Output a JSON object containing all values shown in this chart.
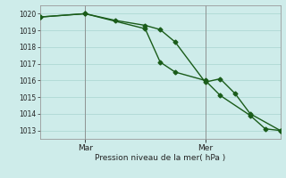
{
  "xlabel": "Pression niveau de la mer( hPa )",
  "background_color": "#ceecea",
  "grid_color": "#aed8d4",
  "line_color": "#1a5c1a",
  "ylim": [
    1012.5,
    1020.5
  ],
  "xlim": [
    0,
    48
  ],
  "yticks": [
    1013,
    1014,
    1015,
    1016,
    1017,
    1018,
    1019,
    1020
  ],
  "day_markers": [
    {
      "x": 9,
      "label": "Mar"
    },
    {
      "x": 33,
      "label": "Mer"
    }
  ],
  "series1": {
    "x": [
      0,
      9,
      15,
      21,
      24,
      27,
      33,
      36,
      39,
      42,
      48
    ],
    "y": [
      1019.8,
      1020.0,
      1019.6,
      1019.3,
      1019.05,
      1018.3,
      1015.9,
      1016.1,
      1015.2,
      1014.0,
      1013.0
    ]
  },
  "series2": {
    "x": [
      0,
      9,
      21,
      24,
      27,
      33,
      36,
      42,
      45,
      48
    ],
    "y": [
      1019.8,
      1020.0,
      1019.1,
      1017.1,
      1016.5,
      1016.0,
      1015.1,
      1013.9,
      1013.1,
      1013.0
    ]
  },
  "marker_style": "D",
  "marker_size": 2.5,
  "line_width": 1.0
}
